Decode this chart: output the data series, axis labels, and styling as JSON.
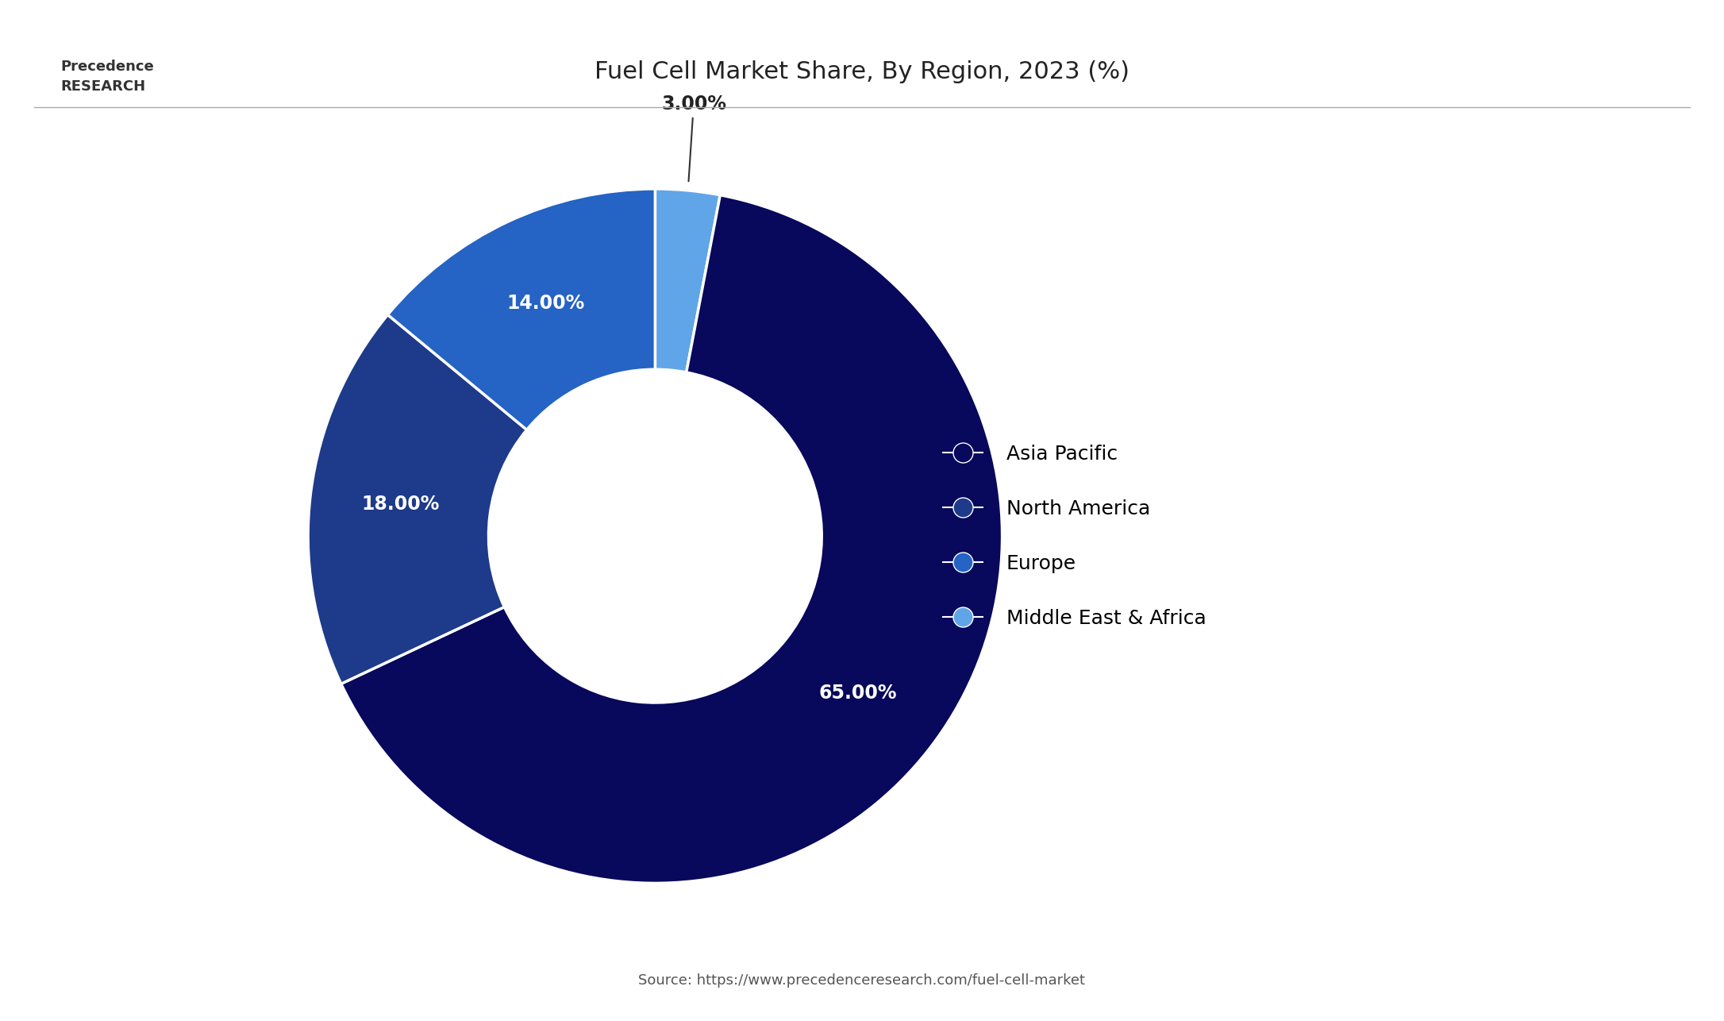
{
  "title": "Fuel Cell Market Share, By Region, 2023 (%)",
  "title_fontsize": 22,
  "slices": [
    65.0,
    18.0,
    14.0,
    3.0
  ],
  "labels": [
    "Asia Pacific",
    "North America",
    "Europe",
    "Middle East & Africa"
  ],
  "colors": [
    "#08085c",
    "#1e3a8a",
    "#2563c4",
    "#60a5e8"
  ],
  "pct_labels": [
    "65.00%",
    "18.00%",
    "14.00%",
    "3.00%"
  ],
  "source_text": "Source: https://www.precedenceresearch.com/fuel-cell-market",
  "bg_color": "#ffffff",
  "text_color_white": "#ffffff",
  "text_color_dark": "#222222",
  "wedge_border_color": "#ffffff",
  "legend_fontsize": 18,
  "pct_fontsize": 17
}
